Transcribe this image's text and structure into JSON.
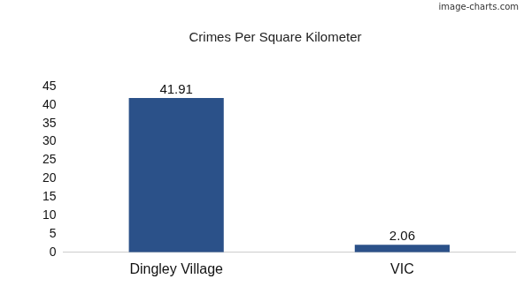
{
  "chart_data": {
    "type": "bar",
    "title": "Crimes Per Square Kilometer",
    "categories": [
      "Dingley Village",
      "VIC"
    ],
    "values": [
      41.91,
      2.06
    ],
    "color": "#2b5189",
    "ylim": [
      0,
      45
    ],
    "yticks": [
      0,
      5,
      10,
      15,
      20,
      25,
      30,
      35,
      40,
      45
    ],
    "grid": false,
    "data_labels": true,
    "annotations": [
      "image-charts.com"
    ]
  }
}
